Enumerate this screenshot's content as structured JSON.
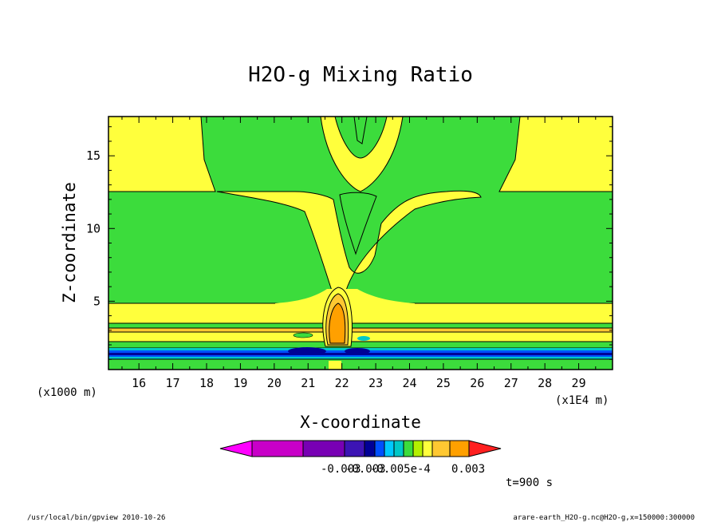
{
  "chart_data": {
    "type": "heatmap",
    "title": "H2O-g Mixing Ratio",
    "xlabel": "X-coordinate",
    "ylabel": "Z-coordinate",
    "x_unit": "(x1E4 m)",
    "y_unit": "(x1000 m)",
    "xlim": [
      15.1,
      30.0
    ],
    "ylim": [
      0.3,
      17.7
    ],
    "x_ticks": [
      16,
      17,
      18,
      19,
      20,
      21,
      22,
      23,
      24,
      25,
      26,
      27,
      28,
      29
    ],
    "y_ticks": [
      5,
      10,
      15
    ],
    "colorbar_labels": [
      "-0.003",
      "-0.003",
      "-0.005e-4",
      "0.003"
    ],
    "time_label": "t=900 s",
    "footer_left": "/usr/local/bin/gpview  2010-10-26",
    "footer_right": "arare-earth_H2O-g.nc@H2O-g,x=150000:300000",
    "colors": {
      "yellow": "#ffff3c",
      "green": "#3cdc3c",
      "orange": "#ffa000",
      "light_orange": "#ffc832",
      "teal": "#00c8c8",
      "blue": "#0050ff",
      "navy": "#000096",
      "magenta": "#c800c8"
    }
  }
}
